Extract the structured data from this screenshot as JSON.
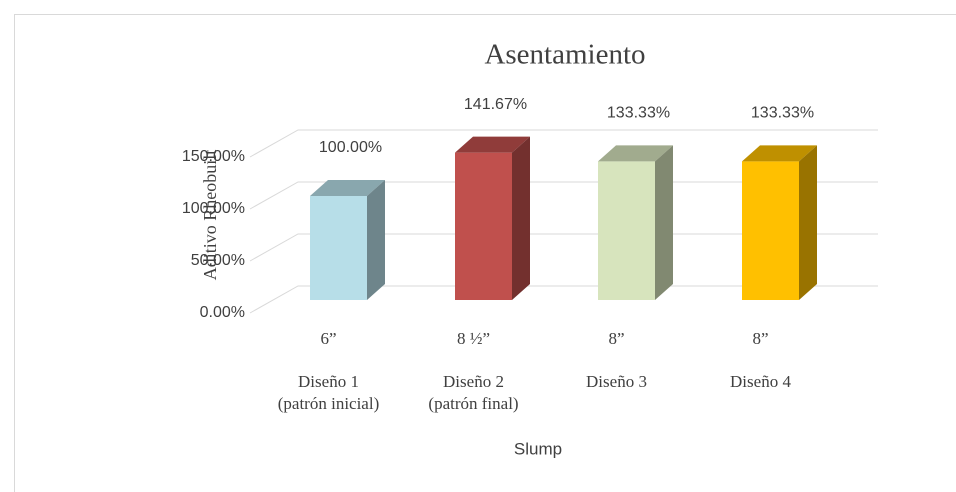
{
  "chart_data": {
    "type": "bar3d",
    "title": "Asentamiento",
    "y_label": "Aditivo Rheobuilt",
    "x_label": "Slump",
    "categories": [
      [
        "6”",
        "Diseño 1",
        "(patrón inicial)"
      ],
      [
        "8 ½”",
        "Diseño 2",
        "(patrón final)"
      ],
      [
        "8”",
        "Diseño 3"
      ],
      [
        "8”",
        "Diseño 4"
      ]
    ],
    "values": [
      100,
      141.67,
      133.33,
      133.33
    ],
    "value_labels": [
      "100.00%",
      "141.67%",
      "133.33%",
      "133.33%"
    ],
    "colors": [
      "#b7dee8",
      "#c0504d",
      "#d7e4bd",
      "#ffc000"
    ],
    "ylim": [
      0,
      150
    ],
    "yticks": [
      {
        "value": 0,
        "label": "0.00%"
      },
      {
        "value": 50,
        "label": "50.00%"
      },
      {
        "value": 100,
        "label": "100.00%"
      },
      {
        "value": 150,
        "label": "150.00%"
      }
    ],
    "grid": true
  }
}
